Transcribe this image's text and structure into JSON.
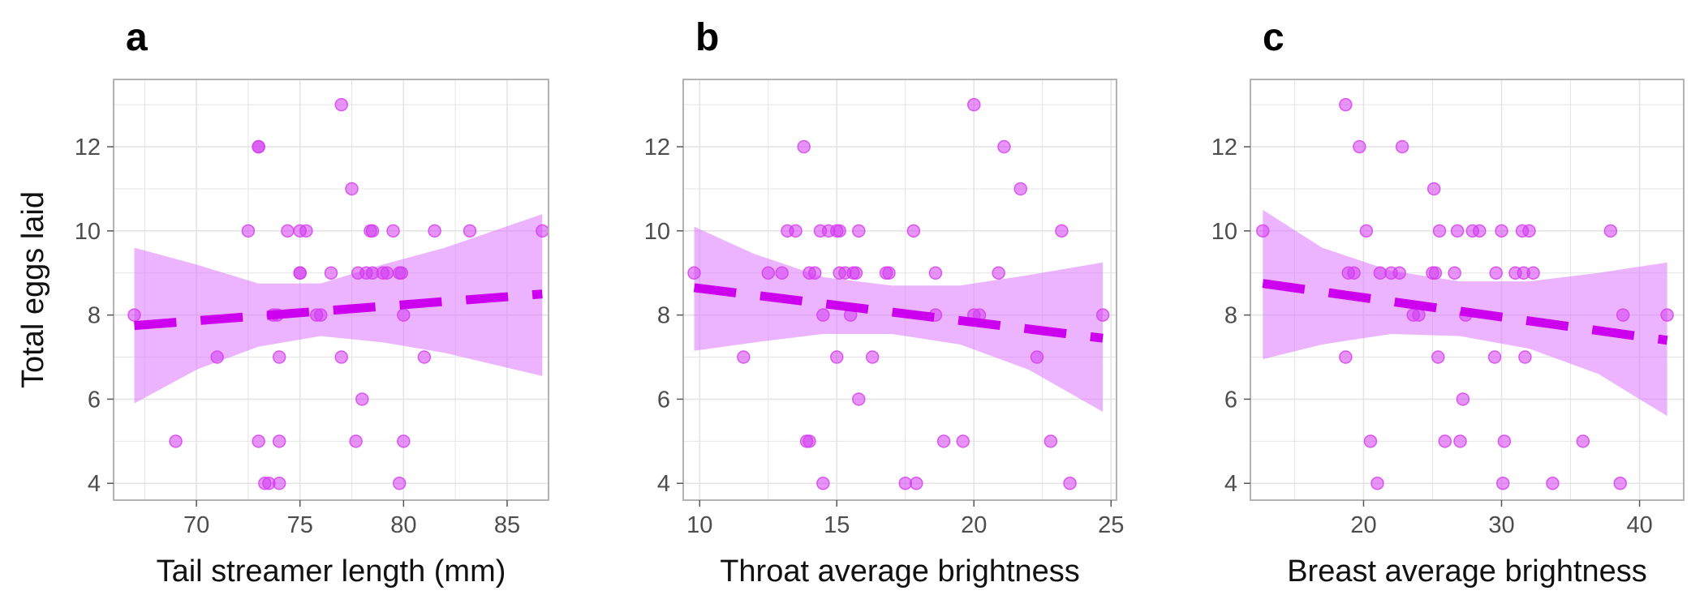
{
  "colors": {
    "point": "#d43bf0",
    "trend": "#cc00ee",
    "band": "#dd77ff",
    "grid": "#e4e4e4",
    "panel_border": "#b3b3b3",
    "tick_text": "#4d4d4d",
    "label_text": "#111111"
  },
  "chart_data": [
    {
      "type": "scatter",
      "panel": "a",
      "xlabel": "Tail streamer length (mm)",
      "ylabel": "Total eggs laid",
      "xlim": [
        66,
        87
      ],
      "ylim": [
        3.6,
        13.6
      ],
      "xticks": [
        70,
        75,
        80,
        85
      ],
      "yticks": [
        4,
        6,
        8,
        10,
        12
      ],
      "grid": true,
      "trend": {
        "style": "dashed",
        "x": [
          67,
          86.7
        ],
        "y": [
          7.75,
          8.5
        ]
      },
      "ci_band": {
        "x": [
          67,
          70,
          73,
          76,
          79,
          82,
          86.7
        ],
        "lower": [
          5.9,
          6.7,
          7.25,
          7.5,
          7.35,
          7.1,
          6.55
        ],
        "upper": [
          9.6,
          9.2,
          8.75,
          8.75,
          9.2,
          9.6,
          10.4
        ]
      },
      "points": [
        {
          "x": 67,
          "y": 8
        },
        {
          "x": 69,
          "y": 5
        },
        {
          "x": 71,
          "y": 7
        },
        {
          "x": 72.5,
          "y": 10
        },
        {
          "x": 73,
          "y": 12
        },
        {
          "x": 73,
          "y": 12
        },
        {
          "x": 73,
          "y": 5
        },
        {
          "x": 73.3,
          "y": 4
        },
        {
          "x": 73.5,
          "y": 4
        },
        {
          "x": 73.7,
          "y": 8
        },
        {
          "x": 73.9,
          "y": 8
        },
        {
          "x": 74,
          "y": 7
        },
        {
          "x": 74,
          "y": 5
        },
        {
          "x": 74,
          "y": 4
        },
        {
          "x": 74.4,
          "y": 10
        },
        {
          "x": 75,
          "y": 9
        },
        {
          "x": 75,
          "y": 9
        },
        {
          "x": 75,
          "y": 10
        },
        {
          "x": 75.3,
          "y": 10
        },
        {
          "x": 75.8,
          "y": 8
        },
        {
          "x": 76,
          "y": 8
        },
        {
          "x": 76.5,
          "y": 9
        },
        {
          "x": 77,
          "y": 13
        },
        {
          "x": 77,
          "y": 7
        },
        {
          "x": 77.5,
          "y": 11
        },
        {
          "x": 77.7,
          "y": 5
        },
        {
          "x": 77.8,
          "y": 9
        },
        {
          "x": 78,
          "y": 6
        },
        {
          "x": 78.2,
          "y": 9
        },
        {
          "x": 78.4,
          "y": 10
        },
        {
          "x": 78.5,
          "y": 9
        },
        {
          "x": 78.5,
          "y": 10
        },
        {
          "x": 79,
          "y": 9
        },
        {
          "x": 79.2,
          "y": 9
        },
        {
          "x": 79.5,
          "y": 10
        },
        {
          "x": 79.8,
          "y": 9
        },
        {
          "x": 79.9,
          "y": 9
        },
        {
          "x": 79.8,
          "y": 4
        },
        {
          "x": 80,
          "y": 8
        },
        {
          "x": 80,
          "y": 5
        },
        {
          "x": 81,
          "y": 7
        },
        {
          "x": 81.5,
          "y": 10
        },
        {
          "x": 83.2,
          "y": 10
        },
        {
          "x": 86.7,
          "y": 10
        }
      ]
    },
    {
      "type": "scatter",
      "panel": "b",
      "xlabel": "Throat average brightness",
      "ylabel": "",
      "xlim": [
        9.4,
        25.2
      ],
      "ylim": [
        3.6,
        13.6
      ],
      "xticks": [
        10,
        15,
        20,
        25
      ],
      "yticks": [
        4,
        6,
        8,
        10,
        12
      ],
      "grid": true,
      "trend": {
        "style": "dashed",
        "x": [
          9.8,
          24.7
        ],
        "y": [
          8.65,
          7.45
        ]
      },
      "ci_band": {
        "x": [
          9.8,
          12,
          14.5,
          17,
          19.5,
          22,
          24.7
        ],
        "lower": [
          7.15,
          7.35,
          7.55,
          7.55,
          7.3,
          6.7,
          5.7
        ],
        "upper": [
          10.1,
          9.45,
          8.9,
          8.7,
          8.7,
          8.95,
          9.25
        ]
      },
      "points": [
        {
          "x": 9.8,
          "y": 9
        },
        {
          "x": 11.6,
          "y": 7
        },
        {
          "x": 12.5,
          "y": 9
        },
        {
          "x": 13,
          "y": 9
        },
        {
          "x": 13.2,
          "y": 10
        },
        {
          "x": 13.5,
          "y": 10
        },
        {
          "x": 13.8,
          "y": 12
        },
        {
          "x": 13.9,
          "y": 5
        },
        {
          "x": 14,
          "y": 5
        },
        {
          "x": 14,
          "y": 9
        },
        {
          "x": 14.2,
          "y": 9
        },
        {
          "x": 14.4,
          "y": 10
        },
        {
          "x": 14.5,
          "y": 8
        },
        {
          "x": 14.5,
          "y": 4
        },
        {
          "x": 14.7,
          "y": 10
        },
        {
          "x": 15,
          "y": 10
        },
        {
          "x": 15,
          "y": 7
        },
        {
          "x": 15.1,
          "y": 10
        },
        {
          "x": 15.1,
          "y": 9
        },
        {
          "x": 15.3,
          "y": 9
        },
        {
          "x": 15.5,
          "y": 8
        },
        {
          "x": 15.6,
          "y": 9
        },
        {
          "x": 15.7,
          "y": 9
        },
        {
          "x": 15.8,
          "y": 10
        },
        {
          "x": 15.8,
          "y": 6
        },
        {
          "x": 16.3,
          "y": 7
        },
        {
          "x": 16.8,
          "y": 9
        },
        {
          "x": 16.9,
          "y": 9
        },
        {
          "x": 17.5,
          "y": 4
        },
        {
          "x": 17.8,
          "y": 10
        },
        {
          "x": 17.9,
          "y": 4
        },
        {
          "x": 18.6,
          "y": 9
        },
        {
          "x": 18.6,
          "y": 8
        },
        {
          "x": 18.9,
          "y": 5
        },
        {
          "x": 19.6,
          "y": 5
        },
        {
          "x": 20,
          "y": 13
        },
        {
          "x": 20,
          "y": 8
        },
        {
          "x": 20.2,
          "y": 8
        },
        {
          "x": 20.9,
          "y": 9
        },
        {
          "x": 21.1,
          "y": 12
        },
        {
          "x": 21.7,
          "y": 11
        },
        {
          "x": 22.3,
          "y": 7
        },
        {
          "x": 22.8,
          "y": 5
        },
        {
          "x": 23.2,
          "y": 10
        },
        {
          "x": 23.5,
          "y": 4
        },
        {
          "x": 24.7,
          "y": 8
        }
      ]
    },
    {
      "type": "scatter",
      "panel": "c",
      "xlabel": "Breast average brightness",
      "ylabel": "",
      "xlim": [
        11.8,
        43.2
      ],
      "ylim": [
        3.6,
        13.6
      ],
      "xticks": [
        20,
        30,
        40
      ],
      "yticks": [
        4,
        6,
        8,
        10,
        12
      ],
      "grid": true,
      "trend": {
        "style": "dashed",
        "x": [
          12.7,
          42
        ],
        "y": [
          8.75,
          7.4
        ]
      },
      "ci_band": {
        "x": [
          12.7,
          17,
          22,
          27,
          32,
          37,
          42
        ],
        "lower": [
          6.95,
          7.3,
          7.55,
          7.5,
          7.2,
          6.6,
          5.6
        ],
        "upper": [
          10.5,
          9.6,
          9.05,
          8.8,
          8.8,
          9.0,
          9.25
        ]
      },
      "points": [
        {
          "x": 12.7,
          "y": 10
        },
        {
          "x": 18.7,
          "y": 13
        },
        {
          "x": 18.7,
          "y": 7
        },
        {
          "x": 18.9,
          "y": 9
        },
        {
          "x": 19.3,
          "y": 9
        },
        {
          "x": 19.7,
          "y": 12
        },
        {
          "x": 20.2,
          "y": 10
        },
        {
          "x": 20.5,
          "y": 5
        },
        {
          "x": 21,
          "y": 4
        },
        {
          "x": 21.2,
          "y": 9
        },
        {
          "x": 22,
          "y": 9
        },
        {
          "x": 22.6,
          "y": 9
        },
        {
          "x": 22.8,
          "y": 12
        },
        {
          "x": 23.6,
          "y": 8
        },
        {
          "x": 24,
          "y": 8
        },
        {
          "x": 25,
          "y": 9
        },
        {
          "x": 25.1,
          "y": 11
        },
        {
          "x": 25.2,
          "y": 9
        },
        {
          "x": 25.4,
          "y": 7
        },
        {
          "x": 25.5,
          "y": 10
        },
        {
          "x": 25.9,
          "y": 5
        },
        {
          "x": 26.6,
          "y": 9
        },
        {
          "x": 26.8,
          "y": 10
        },
        {
          "x": 27,
          "y": 5
        },
        {
          "x": 27.2,
          "y": 6
        },
        {
          "x": 27.4,
          "y": 8
        },
        {
          "x": 27.9,
          "y": 10
        },
        {
          "x": 28.4,
          "y": 10
        },
        {
          "x": 29.5,
          "y": 7
        },
        {
          "x": 29.6,
          "y": 9
        },
        {
          "x": 30,
          "y": 10
        },
        {
          "x": 30.1,
          "y": 4
        },
        {
          "x": 30.2,
          "y": 5
        },
        {
          "x": 31,
          "y": 9
        },
        {
          "x": 31.5,
          "y": 10
        },
        {
          "x": 31.6,
          "y": 9
        },
        {
          "x": 31.7,
          "y": 7
        },
        {
          "x": 32,
          "y": 10
        },
        {
          "x": 32.3,
          "y": 9
        },
        {
          "x": 33.7,
          "y": 4
        },
        {
          "x": 35.9,
          "y": 5
        },
        {
          "x": 37.9,
          "y": 10
        },
        {
          "x": 38.6,
          "y": 4
        },
        {
          "x": 38.8,
          "y": 8
        },
        {
          "x": 42,
          "y": 8
        }
      ]
    }
  ],
  "panel_labels": [
    "a",
    "b",
    "c"
  ]
}
